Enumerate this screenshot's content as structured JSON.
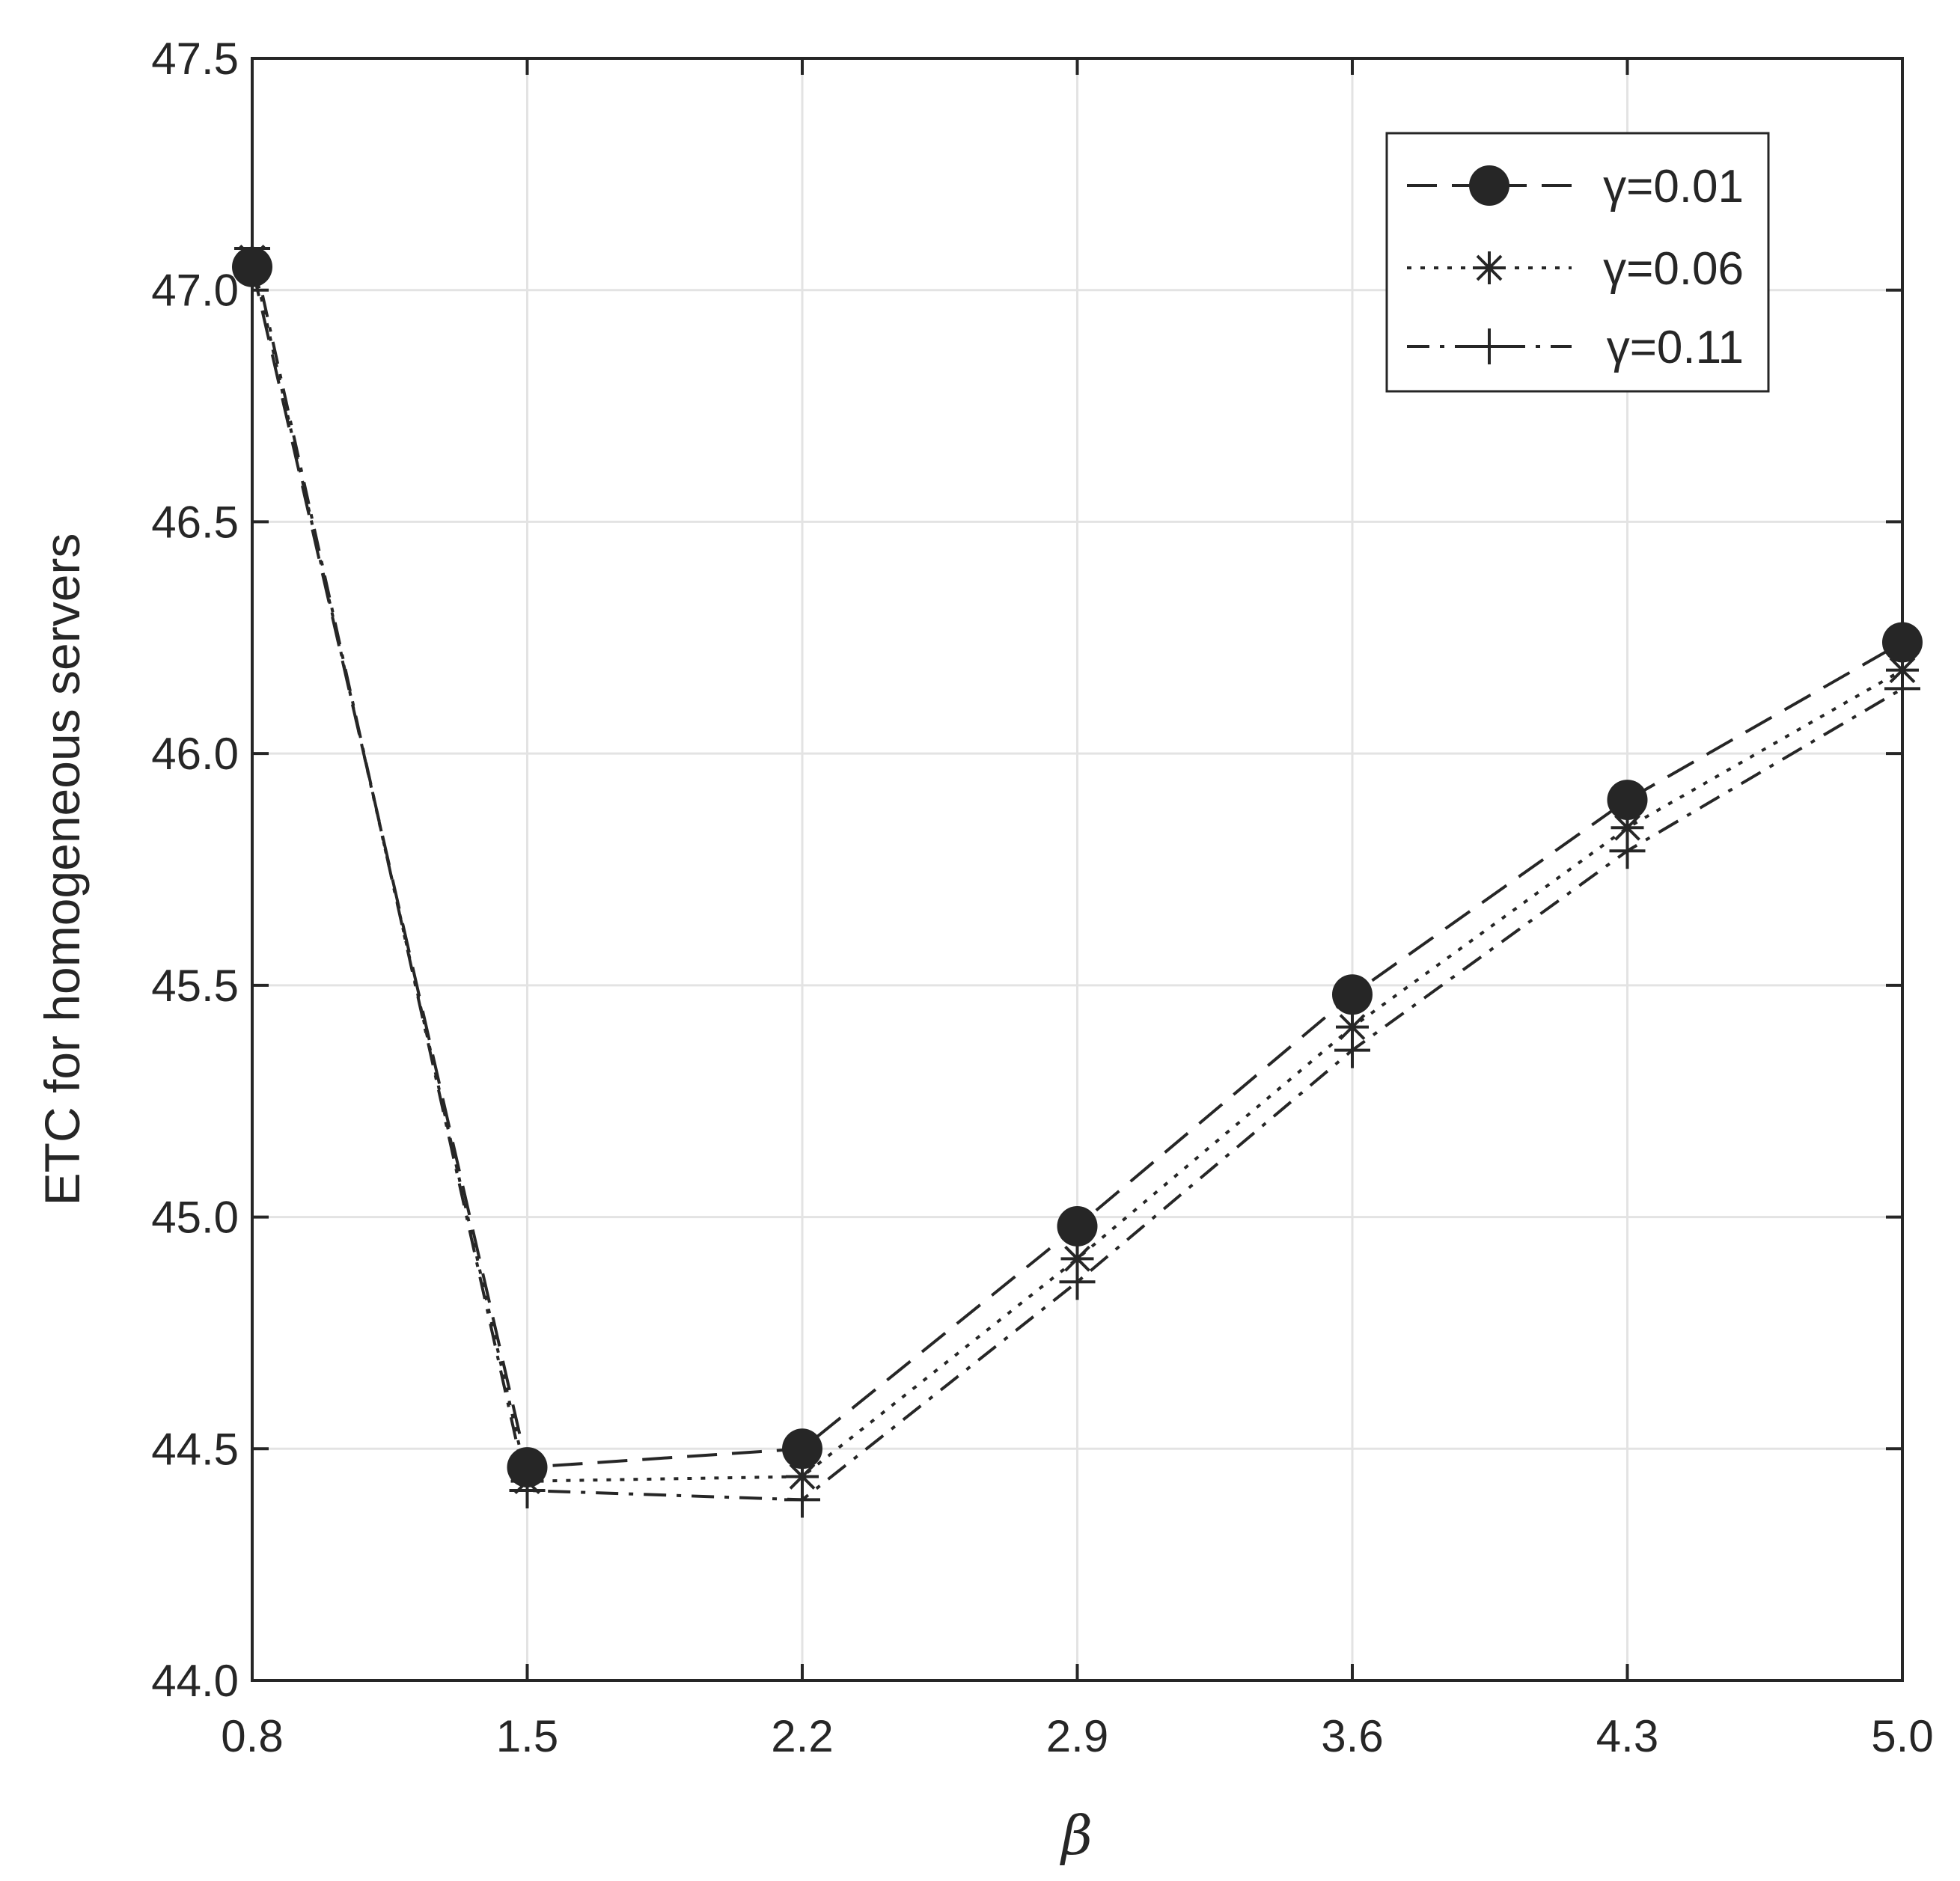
{
  "chart_data": {
    "type": "line",
    "x": [
      0.8,
      1.5,
      2.2,
      2.9,
      3.6,
      4.3,
      5.0
    ],
    "x_tick_labels": [
      "0.8",
      "1.5",
      "2.2",
      "2.9",
      "3.6",
      "4.3",
      "5.0"
    ],
    "y_tick_values": [
      44.0,
      44.5,
      45.0,
      45.5,
      46.0,
      46.5,
      47.0,
      47.5
    ],
    "y_tick_labels": [
      "44.0",
      "44.5",
      "45.0",
      "45.5",
      "46.0",
      "46.5",
      "47.0",
      "47.5"
    ],
    "xlabel": "β",
    "ylabel": "ETC for homogeneous servers",
    "xlim": [
      0.8,
      5.0
    ],
    "ylim": [
      44.0,
      47.5
    ],
    "grid": true,
    "legend_position": "top-right",
    "series": [
      {
        "name": "γ=0.01",
        "values": [
          47.05,
          44.46,
          44.5,
          44.98,
          45.48,
          45.9,
          46.24
        ],
        "marker": "circle",
        "line_style": "dashed",
        "color": "#262626"
      },
      {
        "name": "γ=0.06",
        "values": [
          47.07,
          44.43,
          44.44,
          44.91,
          45.41,
          45.84,
          46.18
        ],
        "marker": "asterisk",
        "line_style": "dotted",
        "color": "#262626"
      },
      {
        "name": "γ=0.11",
        "values": [
          47.09,
          44.41,
          44.39,
          44.86,
          45.36,
          45.79,
          46.14
        ],
        "marker": "plus",
        "line_style": "dash-dot",
        "color": "#262626"
      }
    ]
  }
}
